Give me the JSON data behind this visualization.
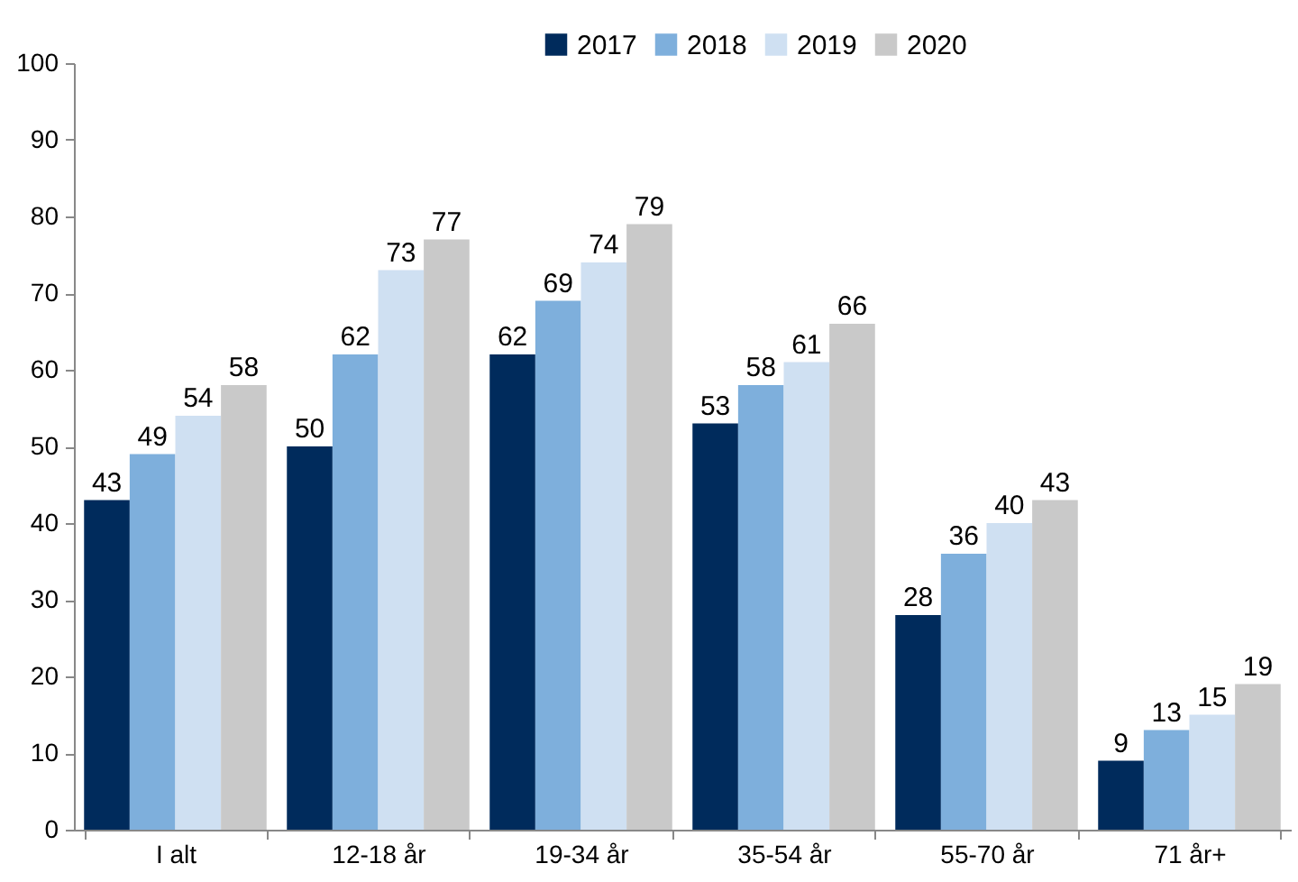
{
  "chart_data": {
    "type": "bar",
    "categories": [
      "I alt",
      "12-18 år",
      "19-34 år",
      "35-54 år",
      "55-70 år",
      "71 år+"
    ],
    "series": [
      {
        "name": "2017",
        "color": "#002b5c",
        "values": [
          43,
          50,
          62,
          53,
          28,
          9
        ]
      },
      {
        "name": "2018",
        "color": "#7eafdc",
        "values": [
          49,
          62,
          69,
          58,
          36,
          13
        ]
      },
      {
        "name": "2019",
        "color": "#cfe0f2",
        "values": [
          54,
          73,
          74,
          61,
          40,
          15
        ]
      },
      {
        "name": "2020",
        "color": "#c9c9c9",
        "values": [
          58,
          77,
          79,
          66,
          43,
          19
        ]
      }
    ],
    "ylim": [
      0,
      100
    ],
    "yticks": [
      0,
      10,
      20,
      30,
      40,
      50,
      60,
      70,
      80,
      90,
      100
    ],
    "grid": false,
    "legend": "top",
    "data_labels": true
  }
}
